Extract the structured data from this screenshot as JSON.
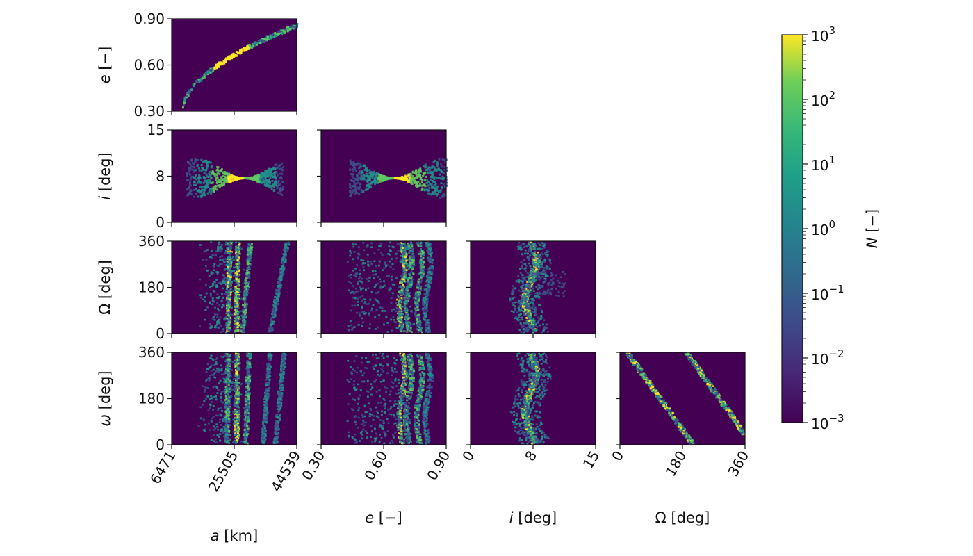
{
  "chart_data": {
    "type": "heatmap",
    "description_kind": "corner plot of 2D histograms (lower triangle)",
    "variables": [
      {
        "key": "a",
        "symbol": "a",
        "unit": "[km]",
        "range": [
          6471,
          44539
        ],
        "ticks": [
          "6471",
          "25505",
          "44539"
        ]
      },
      {
        "key": "e",
        "symbol": "e",
        "unit": "[−]",
        "range": [
          0.3,
          0.9
        ],
        "ticks": [
          "0.30",
          "0.60",
          "0.90"
        ]
      },
      {
        "key": "i",
        "symbol": "i",
        "unit": "[deg]",
        "range": [
          0,
          15
        ],
        "ticks": [
          "0",
          "8",
          "15"
        ]
      },
      {
        "key": "Omega",
        "symbol": "Ω",
        "unit": "[deg]",
        "range": [
          0,
          360
        ],
        "ticks": [
          "0",
          "180",
          "360"
        ]
      },
      {
        "key": "omega",
        "symbol": "ω",
        "unit": "[deg]",
        "range": [
          0,
          360
        ],
        "ticks": [
          "0",
          "180",
          "360"
        ]
      }
    ],
    "panels": [
      {
        "row": "e",
        "col": "a",
        "row_label": "e [−]"
      },
      {
        "row": "i",
        "col": "a",
        "row_label": "i [deg]"
      },
      {
        "row": "i",
        "col": "e"
      },
      {
        "row": "Omega",
        "col": "a",
        "row_label": "Ω [deg]"
      },
      {
        "row": "Omega",
        "col": "e"
      },
      {
        "row": "Omega",
        "col": "i"
      },
      {
        "row": "omega",
        "col": "a",
        "row_label": "ω [deg]"
      },
      {
        "row": "omega",
        "col": "e"
      },
      {
        "row": "omega",
        "col": "i"
      },
      {
        "row": "omega",
        "col": "Omega"
      }
    ],
    "x_labels": [
      "a [km]",
      "e [−]",
      "i [deg]",
      "Ω [deg]"
    ],
    "colorbar": {
      "label": "N [−]",
      "scale": "log",
      "range": [
        0.001,
        1000
      ],
      "ticks": [
        {
          "base": "10",
          "exp": "3"
        },
        {
          "base": "10",
          "exp": "2"
        },
        {
          "base": "10",
          "exp": "1"
        },
        {
          "base": "10",
          "exp": "0"
        },
        {
          "base": "10",
          "exp": "−1"
        },
        {
          "base": "10",
          "exp": "−2"
        },
        {
          "base": "10",
          "exp": "−3"
        }
      ],
      "colormap": "viridis"
    },
    "colors": {
      "background": "#440154",
      "low": "#3b528b",
      "mid": "#21918c",
      "high": "#5ec962",
      "peak": "#fde725"
    }
  }
}
